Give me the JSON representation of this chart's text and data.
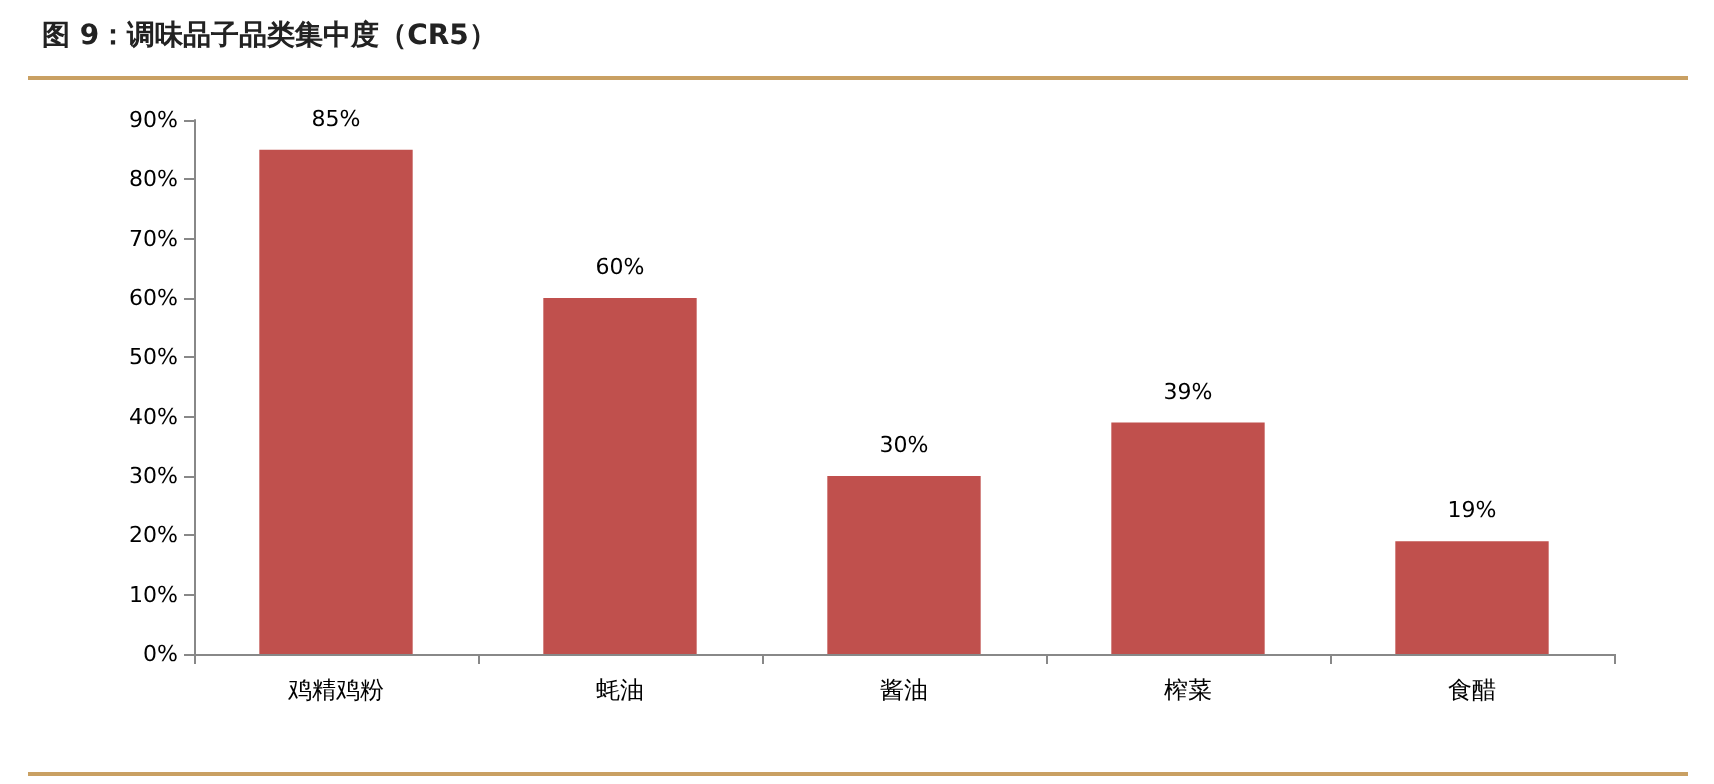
{
  "chart_data": {
    "type": "bar",
    "title": "图 9：调味品子品类集中度（CR5）",
    "categories": [
      "鸡精鸡粉",
      "蚝油",
      "酱油",
      "榨菜",
      "食醋"
    ],
    "values": [
      85,
      60,
      30,
      39,
      19
    ],
    "value_labels": [
      "85%",
      "60%",
      "30%",
      "39%",
      "19%"
    ],
    "color": "#c0504d",
    "ylim": [
      0,
      90
    ],
    "yticks": [
      {
        "value": 0,
        "label": "0%"
      },
      {
        "value": 10,
        "label": "10%"
      },
      {
        "value": 20,
        "label": "20%"
      },
      {
        "value": 30,
        "label": "30%"
      },
      {
        "value": 40,
        "label": "40%"
      },
      {
        "value": 50,
        "label": "50%"
      },
      {
        "value": 60,
        "label": "60%"
      },
      {
        "value": 70,
        "label": "70%"
      },
      {
        "value": 80,
        "label": "80%"
      },
      {
        "value": 90,
        "label": "90%"
      }
    ],
    "grid": false
  }
}
